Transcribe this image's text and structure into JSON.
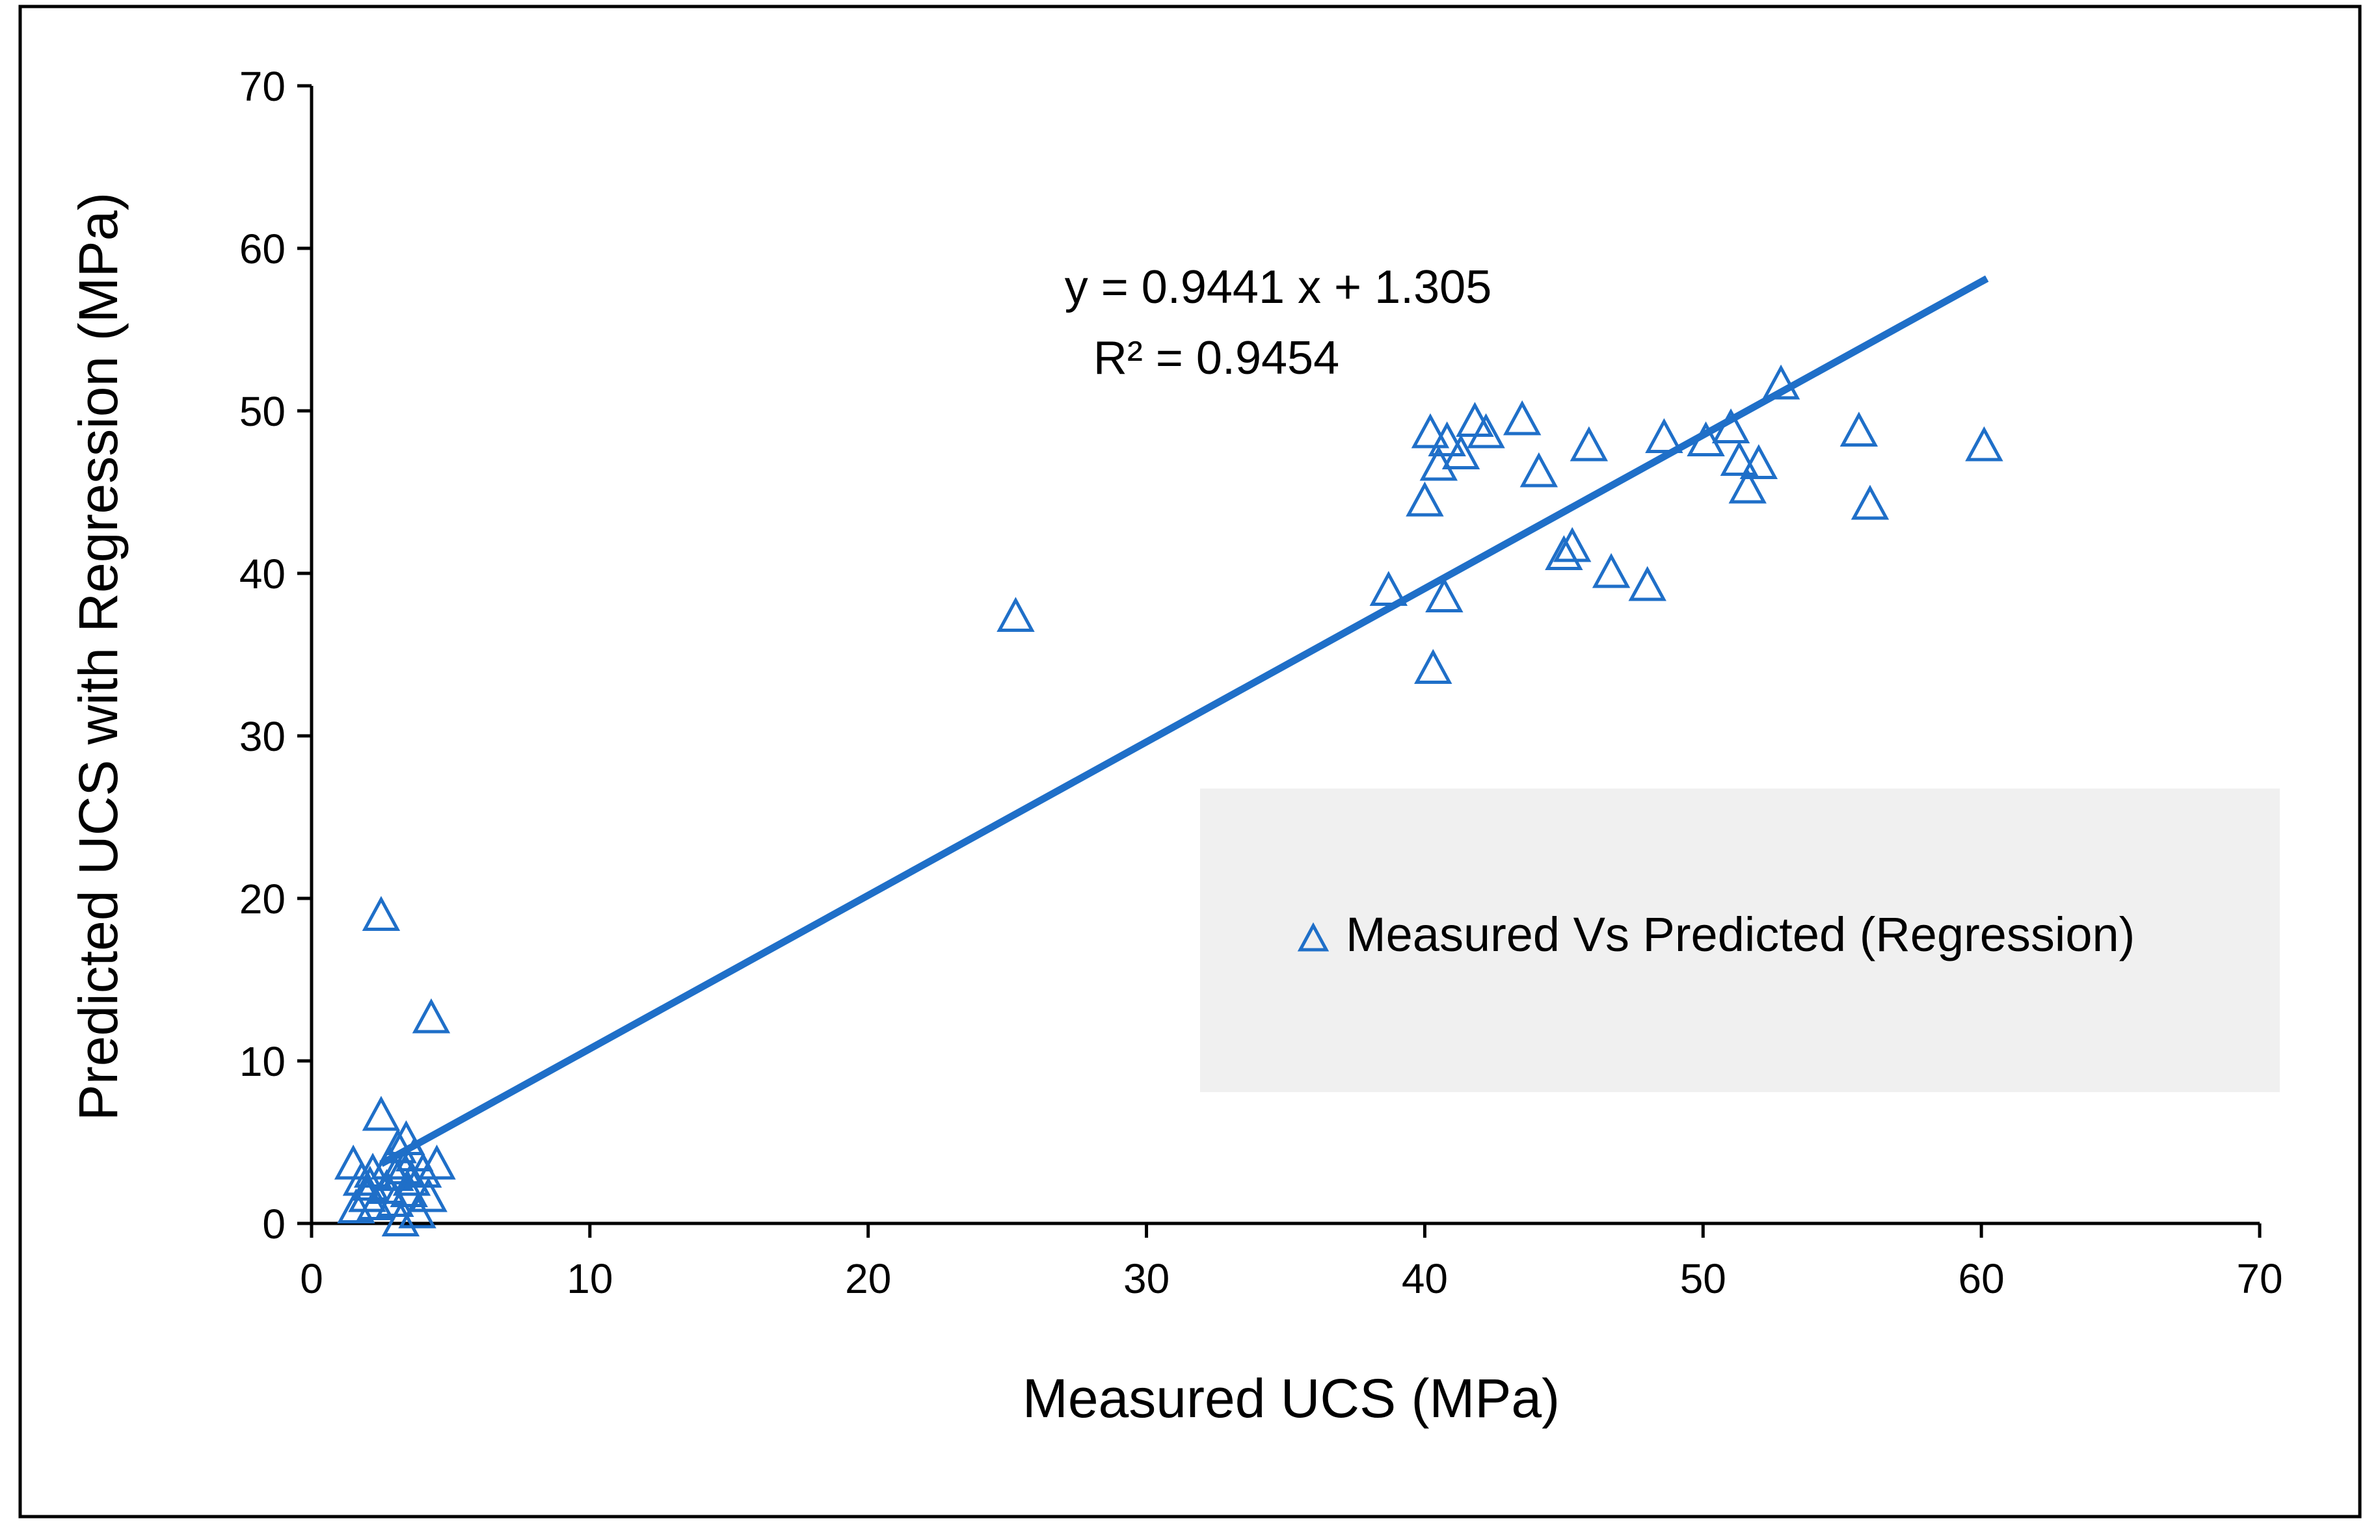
{
  "colors": {
    "series": "#1f6fc8",
    "trendline": "#1f6fc8",
    "axis": "#000000",
    "legend_background": "#f0f0f0",
    "border": "#000000"
  },
  "chart_data": {
    "type": "scatter",
    "xlabel": "Measured UCS (MPa)",
    "ylabel": "Predicted UCS with Regression (MPa)",
    "xlim": [
      0,
      70
    ],
    "ylim": [
      0,
      70
    ],
    "xticks": [
      0,
      10,
      20,
      30,
      40,
      50,
      60,
      70
    ],
    "yticks": [
      0,
      10,
      20,
      30,
      40,
      50,
      60,
      70
    ],
    "grid": false,
    "legend_position": "center-right",
    "marker": "triangle-outline",
    "series": [
      {
        "name": "Measured Vs Predicted (Regression)",
        "points": [
          [
            1.5,
            3.5
          ],
          [
            1.8,
            2.5
          ],
          [
            2.0,
            1.5
          ],
          [
            2.2,
            3.0
          ],
          [
            2.3,
            1.0
          ],
          [
            1.6,
            0.8
          ],
          [
            2.5,
            18.8
          ],
          [
            2.5,
            6.5
          ],
          [
            2.7,
            2.0
          ],
          [
            2.8,
            3.5
          ],
          [
            3.0,
            1.2
          ],
          [
            3.0,
            2.8
          ],
          [
            3.1,
            4.5
          ],
          [
            3.2,
            0.0
          ],
          [
            3.3,
            3.2
          ],
          [
            3.4,
            5.0
          ],
          [
            3.5,
            1.8
          ],
          [
            3.6,
            2.5
          ],
          [
            3.7,
            4.0
          ],
          [
            3.8,
            0.5
          ],
          [
            4.0,
            3.0
          ],
          [
            4.2,
            1.5
          ],
          [
            4.3,
            12.5
          ],
          [
            4.5,
            3.5
          ],
          [
            2.1,
            2.2
          ],
          [
            25.3,
            37.2
          ],
          [
            38.7,
            38.8
          ],
          [
            40.0,
            44.3
          ],
          [
            40.2,
            48.5
          ],
          [
            40.3,
            34.0
          ],
          [
            40.5,
            46.5
          ],
          [
            40.7,
            38.4
          ],
          [
            40.8,
            48.0
          ],
          [
            41.3,
            47.2
          ],
          [
            41.8,
            49.2
          ],
          [
            42.2,
            48.5
          ],
          [
            43.5,
            49.3
          ],
          [
            44.1,
            46.1
          ],
          [
            45.0,
            41.0
          ],
          [
            45.3,
            41.5
          ],
          [
            45.9,
            47.7
          ],
          [
            46.7,
            39.9
          ],
          [
            48.0,
            39.1
          ],
          [
            48.6,
            48.2
          ],
          [
            50.1,
            48.0
          ],
          [
            51.0,
            48.8
          ],
          [
            51.3,
            46.8
          ],
          [
            51.6,
            45.1
          ],
          [
            52.0,
            46.6
          ],
          [
            52.8,
            51.5
          ],
          [
            55.6,
            48.6
          ],
          [
            56.0,
            44.1
          ],
          [
            60.1,
            47.7
          ]
        ]
      }
    ],
    "trendline": {
      "slope": 0.9441,
      "intercept": 1.305,
      "x_range": [
        2.5,
        60.2
      ],
      "equation_label": "y = 0.9441 x + 1.305",
      "r2_label": "R² = 0.9454"
    }
  }
}
